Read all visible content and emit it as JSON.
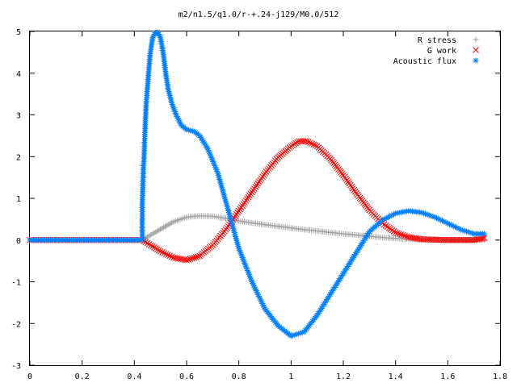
{
  "chart_data": {
    "type": "scatter",
    "title": "m2/n1.5/q1.0/r-+.24-j129/M0.0/512",
    "xlabel": "",
    "ylabel": "",
    "xlim": [
      0,
      1.8
    ],
    "ylim": [
      -3,
      5
    ],
    "x_ticks": [
      "0",
      "0.2",
      "0.4",
      "0.6",
      "0.8",
      "1",
      "1.2",
      "1.4",
      "1.6",
      "1.8"
    ],
    "y_ticks": [
      "5",
      "4",
      "3",
      "2",
      "1",
      "0",
      "-1",
      "-2",
      "-3"
    ],
    "grid": false,
    "legend_position": "top-right",
    "series": [
      {
        "name": "R stress",
        "marker": "plus",
        "color": "#a0a0a0",
        "points": [
          [
            0,
            0
          ],
          [
            0.43,
            0.0
          ],
          [
            0.47,
            0.15
          ],
          [
            0.5,
            0.26
          ],
          [
            0.55,
            0.44
          ],
          [
            0.6,
            0.55
          ],
          [
            0.65,
            0.58
          ],
          [
            0.7,
            0.57
          ],
          [
            0.75,
            0.52
          ],
          [
            0.8,
            0.46
          ],
          [
            0.85,
            0.41
          ],
          [
            0.9,
            0.37
          ],
          [
            0.95,
            0.33
          ],
          [
            1.0,
            0.29
          ],
          [
            1.05,
            0.25
          ],
          [
            1.1,
            0.22
          ],
          [
            1.15,
            0.18
          ],
          [
            1.2,
            0.15
          ],
          [
            1.25,
            0.12
          ],
          [
            1.3,
            0.09
          ],
          [
            1.35,
            0.06
          ],
          [
            1.4,
            0.04
          ],
          [
            1.45,
            0.02
          ],
          [
            1.5,
            0.01
          ],
          [
            1.55,
            0.0
          ],
          [
            1.6,
            0.0
          ],
          [
            1.7,
            0.0
          ],
          [
            1.74,
            0.0
          ]
        ]
      },
      {
        "name": "G work",
        "marker": "cross",
        "color": "#ff0000",
        "points": [
          [
            0,
            0
          ],
          [
            0.43,
            0.0
          ],
          [
            0.47,
            -0.15
          ],
          [
            0.5,
            -0.27
          ],
          [
            0.55,
            -0.42
          ],
          [
            0.6,
            -0.48
          ],
          [
            0.65,
            -0.38
          ],
          [
            0.7,
            -0.12
          ],
          [
            0.75,
            0.25
          ],
          [
            0.8,
            0.7
          ],
          [
            0.85,
            1.15
          ],
          [
            0.9,
            1.6
          ],
          [
            0.95,
            1.98
          ],
          [
            1.0,
            2.25
          ],
          [
            1.03,
            2.37
          ],
          [
            1.06,
            2.37
          ],
          [
            1.1,
            2.25
          ],
          [
            1.15,
            1.95
          ],
          [
            1.2,
            1.55
          ],
          [
            1.25,
            1.12
          ],
          [
            1.3,
            0.72
          ],
          [
            1.35,
            0.4
          ],
          [
            1.4,
            0.18
          ],
          [
            1.45,
            0.07
          ],
          [
            1.5,
            0.02
          ],
          [
            1.6,
            0.0
          ],
          [
            1.7,
            0.0
          ],
          [
            1.74,
            0.05
          ]
        ]
      },
      {
        "name": "Acoustic flux",
        "marker": "star",
        "color": "#0080ff",
        "points": [
          [
            0,
            0
          ],
          [
            0.43,
            0.0
          ],
          [
            0.43,
            0.87
          ],
          [
            0.435,
            1.78
          ],
          [
            0.437,
            1.97
          ],
          [
            0.44,
            2.53
          ],
          [
            0.443,
            2.95
          ],
          [
            0.446,
            3.33
          ],
          [
            0.45,
            3.65
          ],
          [
            0.455,
            4.05
          ],
          [
            0.46,
            4.43
          ],
          [
            0.465,
            4.65
          ],
          [
            0.47,
            4.85
          ],
          [
            0.48,
            4.97
          ],
          [
            0.49,
            4.98
          ],
          [
            0.5,
            4.85
          ],
          [
            0.51,
            4.5
          ],
          [
            0.52,
            4.0
          ],
          [
            0.53,
            3.6
          ],
          [
            0.545,
            3.25
          ],
          [
            0.56,
            3.0
          ],
          [
            0.58,
            2.75
          ],
          [
            0.6,
            2.65
          ],
          [
            0.63,
            2.6
          ],
          [
            0.65,
            2.5
          ],
          [
            0.68,
            2.2
          ],
          [
            0.72,
            1.6
          ],
          [
            0.76,
            0.7
          ],
          [
            0.8,
            -0.2
          ],
          [
            0.85,
            -1.0
          ],
          [
            0.9,
            -1.65
          ],
          [
            0.95,
            -2.05
          ],
          [
            1.0,
            -2.3
          ],
          [
            1.05,
            -2.2
          ],
          [
            1.1,
            -1.8
          ],
          [
            1.15,
            -1.3
          ],
          [
            1.2,
            -0.8
          ],
          [
            1.25,
            -0.3
          ],
          [
            1.3,
            0.2
          ],
          [
            1.35,
            0.48
          ],
          [
            1.4,
            0.64
          ],
          [
            1.45,
            0.7
          ],
          [
            1.5,
            0.66
          ],
          [
            1.55,
            0.55
          ],
          [
            1.6,
            0.4
          ],
          [
            1.65,
            0.25
          ],
          [
            1.7,
            0.15
          ],
          [
            1.74,
            0.15
          ]
        ]
      }
    ]
  }
}
